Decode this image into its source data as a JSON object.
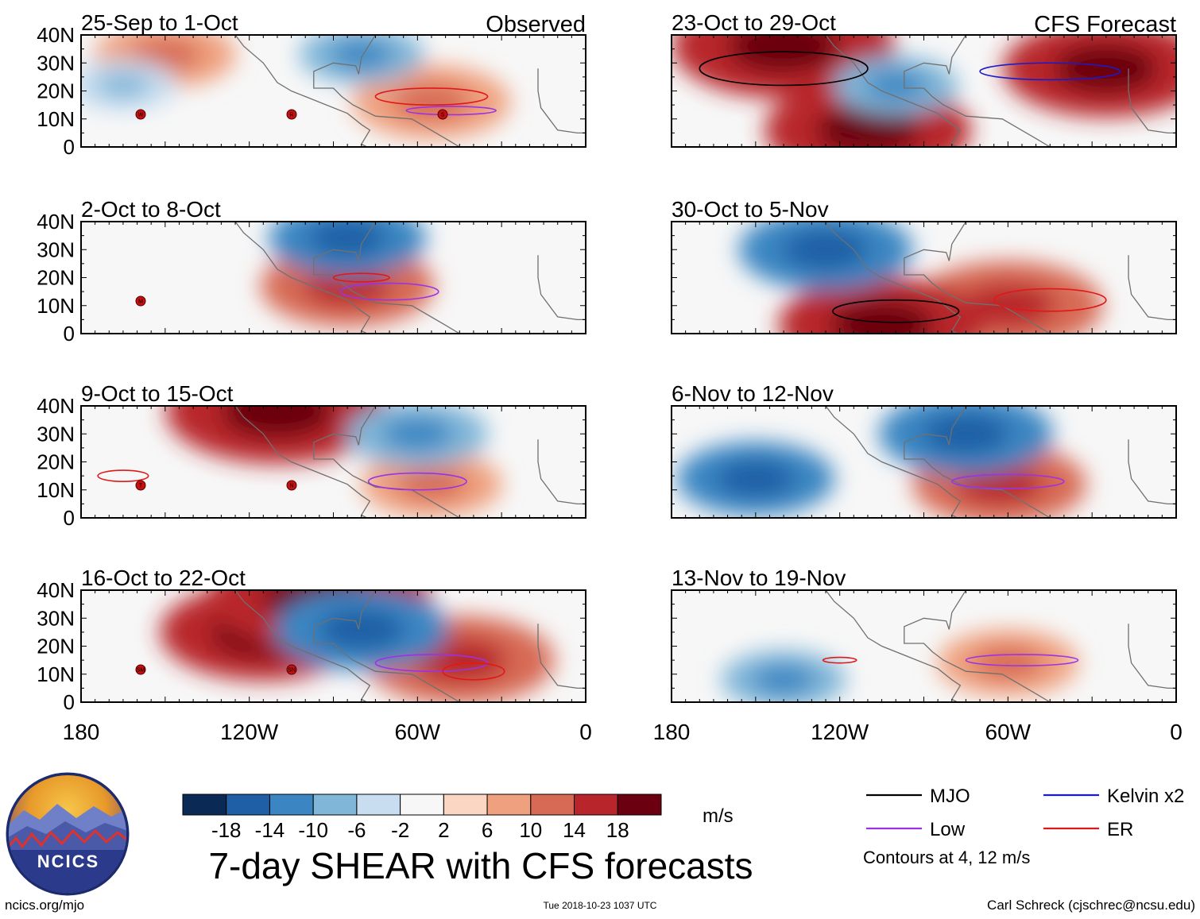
{
  "title": "7-day SHEAR with CFS forecasts",
  "unit": "m/s",
  "contour_note": "Contours at 4, 12 m/s",
  "footer": {
    "site": "ncics.org/mjo",
    "timestamp": "Tue 2018-10-23 1037 UTC",
    "credit": "Carl Schreck (cjschrec@ncsu.edu)"
  },
  "logo": {
    "text": "NCICS"
  },
  "legend": [
    {
      "label": "MJO",
      "color": "#000000"
    },
    {
      "label": "Kelvin x2",
      "color": "#1a1acc"
    },
    {
      "label": "Low",
      "color": "#9a32e6"
    },
    {
      "label": "ER",
      "color": "#e01818"
    }
  ],
  "colorbar": {
    "tick_labels": [
      "-18",
      "-14",
      "-10",
      "-6",
      "-2",
      "2",
      "6",
      "10",
      "14",
      "18"
    ],
    "colors": [
      "#0a2a55",
      "#1f5fa5",
      "#3b86c2",
      "#80b6d8",
      "#c8def0",
      "#f7f7f7",
      "#fbd7c3",
      "#efa07e",
      "#d76a55",
      "#b8262c",
      "#6b0010"
    ]
  },
  "chart_data": {
    "type": "heatmap",
    "variable": "7-day vertical wind shear anomaly",
    "unit": "m/s",
    "x_axis": {
      "range": [
        -180,
        0
      ],
      "tick_labels": [
        "180",
        "120W",
        "60W",
        "0"
      ],
      "tick_values": [
        -180,
        -120,
        -60,
        0
      ]
    },
    "y_axis": {
      "range": [
        0,
        40
      ],
      "tick_labels": [
        "40N",
        "30N",
        "20N",
        "10N",
        "0"
      ],
      "tick_values": [
        40,
        30,
        20,
        10,
        0
      ]
    },
    "column_headers": [
      "Observed",
      "CFS Forecast"
    ],
    "panels": [
      {
        "title": "25-Sep to 1-Oct",
        "kind": "observed",
        "storms": [
          "W",
          "R",
          "S"
        ],
        "features": [
          {
            "type": "anomaly",
            "sign": "positive",
            "lon": -55,
            "lat": 16,
            "mag": 10
          },
          {
            "type": "anomaly",
            "sign": "positive",
            "lon": -150,
            "lat": 33,
            "mag": 8
          },
          {
            "type": "anomaly",
            "sign": "negative",
            "lon": -80,
            "lat": 33,
            "mag": -6
          },
          {
            "type": "anomaly",
            "sign": "negative",
            "lon": -165,
            "lat": 22,
            "mag": -4
          },
          {
            "type": "contour",
            "wave": "ER",
            "lon": -55,
            "lat": 18,
            "w": 40,
            "h": 6
          },
          {
            "type": "contour",
            "wave": "Low",
            "lon": -48,
            "lat": 13,
            "w": 32,
            "h": 3
          }
        ]
      },
      {
        "title": "23-Oct to 29-Oct",
        "kind": "forecast",
        "storms": [],
        "features": [
          {
            "type": "anomaly",
            "sign": "positive",
            "lon": -140,
            "lat": 36,
            "mag": 18
          },
          {
            "type": "anomaly",
            "sign": "positive",
            "lon": -110,
            "lat": 6,
            "mag": 16
          },
          {
            "type": "anomaly",
            "sign": "positive",
            "lon": -25,
            "lat": 28,
            "mag": 16
          },
          {
            "type": "anomaly",
            "sign": "negative",
            "lon": -100,
            "lat": 22,
            "mag": -6
          },
          {
            "type": "contour",
            "wave": "MJO",
            "lon": -140,
            "lat": 28,
            "w": 60,
            "h": 12
          },
          {
            "type": "contour",
            "wave": "Kelvin x2",
            "lon": -45,
            "lat": 27,
            "w": 50,
            "h": 6
          }
        ]
      },
      {
        "title": "2-Oct to 8-Oct",
        "kind": "observed",
        "storms": [
          "M"
        ],
        "features": [
          {
            "type": "anomaly",
            "sign": "positive",
            "lon": -85,
            "lat": 17,
            "mag": 12
          },
          {
            "type": "anomaly",
            "sign": "negative",
            "lon": -85,
            "lat": 34,
            "mag": -10
          },
          {
            "type": "contour",
            "wave": "Low",
            "lon": -70,
            "lat": 15,
            "w": 35,
            "h": 6
          },
          {
            "type": "contour",
            "wave": "ER",
            "lon": -80,
            "lat": 20,
            "w": 20,
            "h": 3
          }
        ]
      },
      {
        "title": "30-Oct to 5-Nov",
        "kind": "forecast",
        "storms": [],
        "features": [
          {
            "type": "anomaly",
            "sign": "positive",
            "lon": -60,
            "lat": 10,
            "mag": 14
          },
          {
            "type": "anomaly",
            "sign": "positive",
            "lon": -105,
            "lat": 3,
            "mag": 16
          },
          {
            "type": "anomaly",
            "sign": "negative",
            "lon": -125,
            "lat": 30,
            "mag": -12
          },
          {
            "type": "contour",
            "wave": "MJO",
            "lon": -100,
            "lat": 8,
            "w": 45,
            "h": 8
          },
          {
            "type": "contour",
            "wave": "ER",
            "lon": -45,
            "lat": 12,
            "w": 40,
            "h": 8
          }
        ]
      },
      {
        "title": "9-Oct to 15-Oct",
        "kind": "observed",
        "storms": [
          "T",
          "N"
        ],
        "features": [
          {
            "type": "anomaly",
            "sign": "positive",
            "lon": -110,
            "lat": 38,
            "mag": 18
          },
          {
            "type": "anomaly",
            "sign": "positive",
            "lon": -55,
            "lat": 12,
            "mag": 8
          },
          {
            "type": "anomaly",
            "sign": "negative",
            "lon": -60,
            "lat": 30,
            "mag": -8
          },
          {
            "type": "contour",
            "wave": "Low",
            "lon": -60,
            "lat": 13,
            "w": 35,
            "h": 6
          },
          {
            "type": "contour",
            "wave": "ER",
            "lon": -165,
            "lat": 15,
            "w": 18,
            "h": 4
          }
        ]
      },
      {
        "title": "6-Nov to 12-Nov",
        "kind": "forecast",
        "storms": [],
        "features": [
          {
            "type": "anomaly",
            "sign": "positive",
            "lon": -63,
            "lat": 12,
            "mag": 12
          },
          {
            "type": "anomaly",
            "sign": "negative",
            "lon": -75,
            "lat": 30,
            "mag": -12
          },
          {
            "type": "anomaly",
            "sign": "negative",
            "lon": -150,
            "lat": 14,
            "mag": -10
          },
          {
            "type": "contour",
            "wave": "Low",
            "lon": -60,
            "lat": 13,
            "w": 40,
            "h": 5
          }
        ]
      },
      {
        "title": "16-Oct to 22-Oct",
        "kind": "observed",
        "storms": [
          "SM",
          "SN"
        ],
        "features": [
          {
            "type": "anomaly",
            "sign": "positive",
            "lon": -115,
            "lat": 25,
            "mag": 16
          },
          {
            "type": "anomaly",
            "sign": "positive",
            "lon": -95,
            "lat": 37,
            "mag": 18
          },
          {
            "type": "anomaly",
            "sign": "positive",
            "lon": -45,
            "lat": 15,
            "mag": 14
          },
          {
            "type": "anomaly",
            "sign": "negative",
            "lon": -80,
            "lat": 26,
            "mag": -12
          },
          {
            "type": "contour",
            "wave": "Low",
            "lon": -55,
            "lat": 14,
            "w": 40,
            "h": 6
          },
          {
            "type": "contour",
            "wave": "ER",
            "lon": -40,
            "lat": 11,
            "w": 22,
            "h": 6
          }
        ]
      },
      {
        "title": "13-Nov to 19-Nov",
        "kind": "forecast",
        "storms": [],
        "features": [
          {
            "type": "anomaly",
            "sign": "positive",
            "lon": -60,
            "lat": 14,
            "mag": 8
          },
          {
            "type": "anomaly",
            "sign": "negative",
            "lon": -140,
            "lat": 8,
            "mag": -6
          },
          {
            "type": "contour",
            "wave": "Low",
            "lon": -55,
            "lat": 15,
            "w": 40,
            "h": 4
          },
          {
            "type": "contour",
            "wave": "ER",
            "lon": -120,
            "lat": 15,
            "w": 12,
            "h": 2
          }
        ]
      }
    ]
  }
}
